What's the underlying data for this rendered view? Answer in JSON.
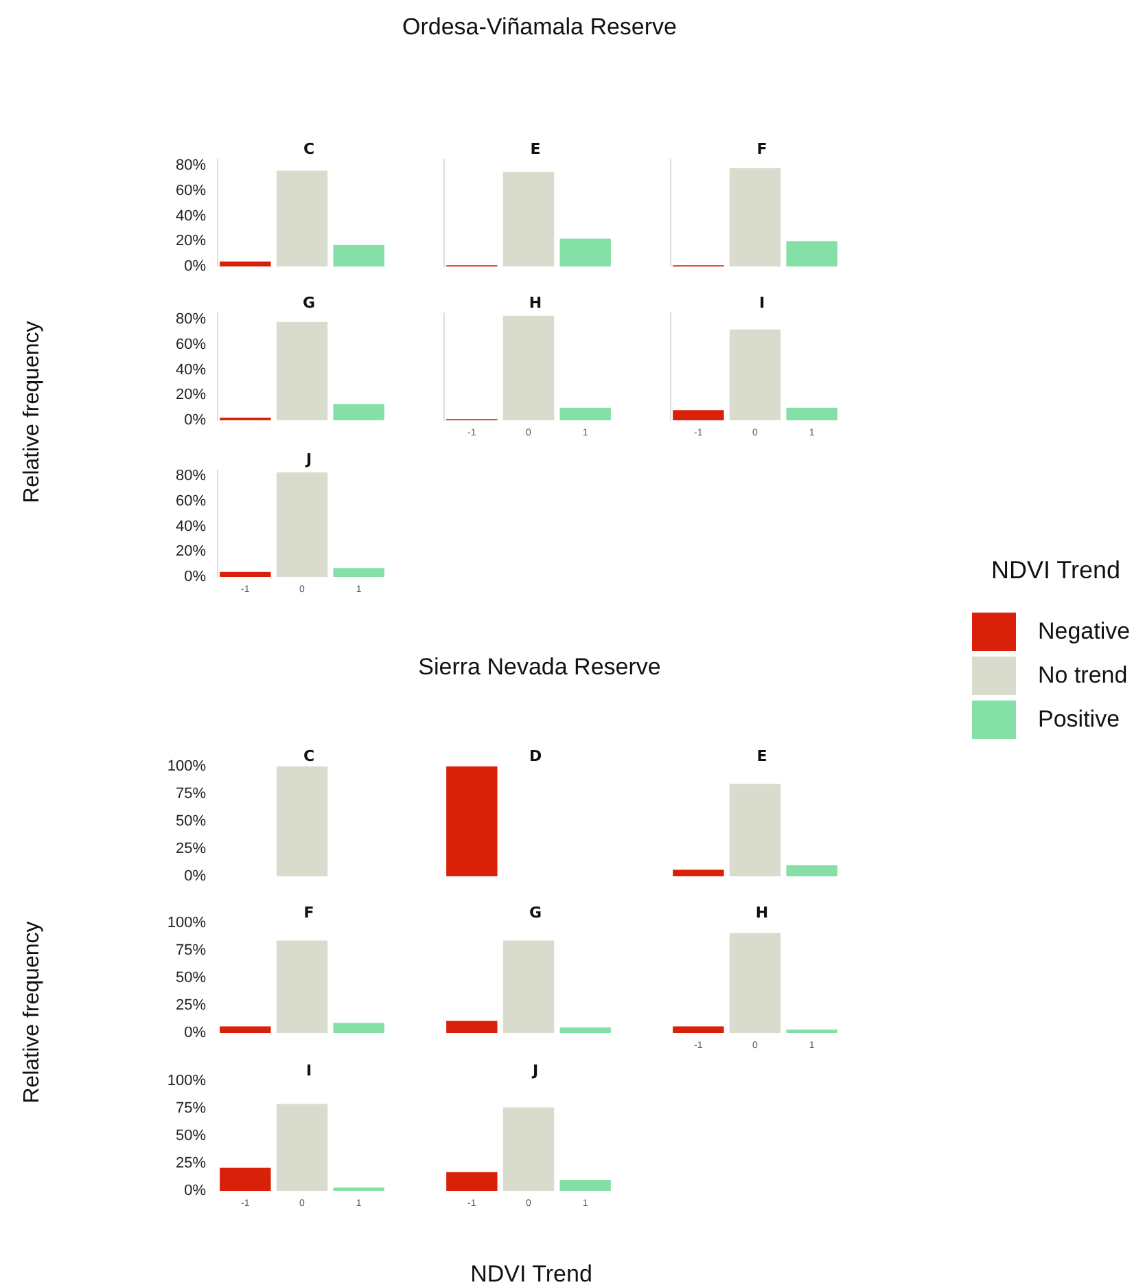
{
  "chart_data": [
    {
      "type": "other",
      "title": "Ordesa-Viñamala Reserve",
      "ylabel": "Relative frequency"
    },
    {
      "type": "bar",
      "legend": "right",
      "legend_title": "NDVI Trend",
      "title": "C",
      "categories": [
        "-1",
        "0",
        "1"
      ],
      "ylim": [
        0,
        85
      ],
      "yticks": [
        {
          "value": 0,
          "label": "0%"
        },
        {
          "value": 20,
          "label": "20%"
        },
        {
          "value": 40,
          "label": "40%"
        },
        {
          "value": 60,
          "label": "60%"
        },
        {
          "value": 80,
          "label": "80%"
        }
      ],
      "tick_labels": "y",
      "series": [
        {
          "name": "Negative",
          "color": "#d92008",
          "values": [
            4,
            null,
            null
          ]
        },
        {
          "name": "No trend",
          "color": "#d9dccd",
          "values": [
            null,
            76,
            null
          ]
        },
        {
          "name": "Positive",
          "color": "#85e0a8",
          "values": [
            null,
            null,
            17
          ]
        }
      ]
    },
    {
      "type": "bar",
      "title": "E",
      "categories": [
        "-1",
        "0",
        "1"
      ],
      "ylim": [
        0,
        85
      ],
      "tick_labels": false,
      "values": [
        1,
        75,
        22
      ],
      "colors": [
        "#d92008",
        "#d9dccd",
        "#85e0a8"
      ]
    },
    {
      "type": "bar",
      "title": "F",
      "categories": [
        "-1",
        "0",
        "1"
      ],
      "ylim": [
        0,
        85
      ],
      "tick_labels": false,
      "values": [
        1,
        78,
        20
      ],
      "colors": [
        "#d92008",
        "#d9dccd",
        "#85e0a8"
      ]
    },
    {
      "type": "bar",
      "title": "G",
      "categories": [
        "-1",
        "0",
        "1"
      ],
      "ylim": [
        0,
        85
      ],
      "yticks": [
        {
          "value": 0,
          "label": "0%"
        },
        {
          "value": 20,
          "label": "20%"
        },
        {
          "value": 40,
          "label": "40%"
        },
        {
          "value": 60,
          "label": "60%"
        },
        {
          "value": 80,
          "label": "80%"
        }
      ],
      "tick_labels": "y",
      "values": [
        2,
        78,
        13
      ],
      "colors": [
        "#d92008",
        "#d9dccd",
        "#85e0a8"
      ]
    },
    {
      "type": "bar",
      "title": "H",
      "categories": [
        "-1",
        "0",
        "1"
      ],
      "ylim": [
        0,
        85
      ],
      "tick_labels": "x",
      "values": [
        1,
        83,
        10
      ],
      "colors": [
        "#d92008",
        "#d9dccd",
        "#85e0a8"
      ]
    },
    {
      "type": "bar",
      "title": "I",
      "categories": [
        "-1",
        "0",
        "1"
      ],
      "ylim": [
        0,
        85
      ],
      "tick_labels": "x",
      "values": [
        8,
        72,
        10
      ],
      "colors": [
        "#d92008",
        "#d9dccd",
        "#85e0a8"
      ]
    },
    {
      "type": "bar",
      "title": "J",
      "categories": [
        "-1",
        "0",
        "1"
      ],
      "ylim": [
        0,
        85
      ],
      "yticks": [
        {
          "value": 0,
          "label": "0%"
        },
        {
          "value": 20,
          "label": "20%"
        },
        {
          "value": 40,
          "label": "40%"
        },
        {
          "value": 60,
          "label": "60%"
        },
        {
          "value": 80,
          "label": "80%"
        }
      ],
      "values": [
        4,
        83,
        7
      ],
      "colors": [
        "#d92008",
        "#d9dccd",
        "#85e0a8"
      ]
    },
    {
      "type": "other",
      "title": "Sierra Nevada Reserve",
      "ylabel": "Relative frequency",
      "xlabel": "NDVI Trend"
    },
    {
      "type": "bar",
      "title": "C",
      "categories": [
        "-1",
        "0",
        "1"
      ],
      "ylim": [
        0,
        100
      ],
      "yticks": [
        {
          "value": 0,
          "label": "0%"
        },
        {
          "value": 25,
          "label": "25%"
        },
        {
          "value": 50,
          "label": "50%"
        },
        {
          "value": 75,
          "label": "75%"
        },
        {
          "value": 100,
          "label": "100%"
        }
      ],
      "tick_labels": "y",
      "values": [
        0,
        100,
        0
      ],
      "colors": [
        "#d92008",
        "#d9dccd",
        "#85e0a8"
      ]
    },
    {
      "type": "bar",
      "title": "D",
      "categories": [
        "-1",
        "0",
        "1"
      ],
      "ylim": [
        0,
        100
      ],
      "tick_labels": false,
      "values": [
        100,
        0,
        0
      ],
      "colors": [
        "#d92008",
        "#d9dccd",
        "#85e0a8"
      ]
    },
    {
      "type": "bar",
      "title": "E",
      "categories": [
        "-1",
        "0",
        "1"
      ],
      "ylim": [
        0,
        100
      ],
      "tick_labels": false,
      "values": [
        6,
        84,
        10
      ],
      "colors": [
        "#d92008",
        "#d9dccd",
        "#85e0a8"
      ]
    },
    {
      "type": "bar",
      "title": "F",
      "categories": [
        "-1",
        "0",
        "1"
      ],
      "ylim": [
        0,
        100
      ],
      "yticks": [
        {
          "value": 0,
          "label": "0%"
        },
        {
          "value": 25,
          "label": "25%"
        },
        {
          "value": 50,
          "label": "50%"
        },
        {
          "value": 75,
          "label": "75%"
        },
        {
          "value": 100,
          "label": "100%"
        }
      ],
      "tick_labels": "y",
      "values": [
        6,
        84,
        9
      ],
      "colors": [
        "#d92008",
        "#d9dccd",
        "#85e0a8"
      ]
    },
    {
      "type": "bar",
      "title": "G",
      "categories": [
        "-1",
        "0",
        "1"
      ],
      "ylim": [
        0,
        100
      ],
      "tick_labels": false,
      "values": [
        11,
        84,
        5
      ],
      "colors": [
        "#d92008",
        "#d9dccd",
        "#85e0a8"
      ]
    },
    {
      "type": "bar",
      "title": "H",
      "categories": [
        "-1",
        "0",
        "1"
      ],
      "ylim": [
        0,
        100
      ],
      "tick_labels": "x",
      "values": [
        6,
        91,
        3
      ],
      "colors": [
        "#d92008",
        "#d9dccd",
        "#85e0a8"
      ]
    },
    {
      "type": "bar",
      "title": "I",
      "categories": [
        "-1",
        "0",
        "1"
      ],
      "ylim": [
        0,
        100
      ],
      "yticks": [
        {
          "value": 0,
          "label": "0%"
        },
        {
          "value": 25,
          "label": "25%"
        },
        {
          "value": 50,
          "label": "50%"
        },
        {
          "value": 75,
          "label": "75%"
        },
        {
          "value": 100,
          "label": "100%"
        }
      ],
      "values": [
        21,
        79,
        3
      ],
      "colors": [
        "#d92008",
        "#d9dccd",
        "#85e0a8"
      ]
    },
    {
      "type": "bar",
      "title": "J",
      "categories": [
        "-1",
        "0",
        "1"
      ],
      "ylim": [
        0,
        100
      ],
      "tick_labels": "x",
      "values": [
        17,
        76,
        10
      ],
      "colors": [
        "#d92008",
        "#d9dccd",
        "#85e0a8"
      ]
    }
  ]
}
